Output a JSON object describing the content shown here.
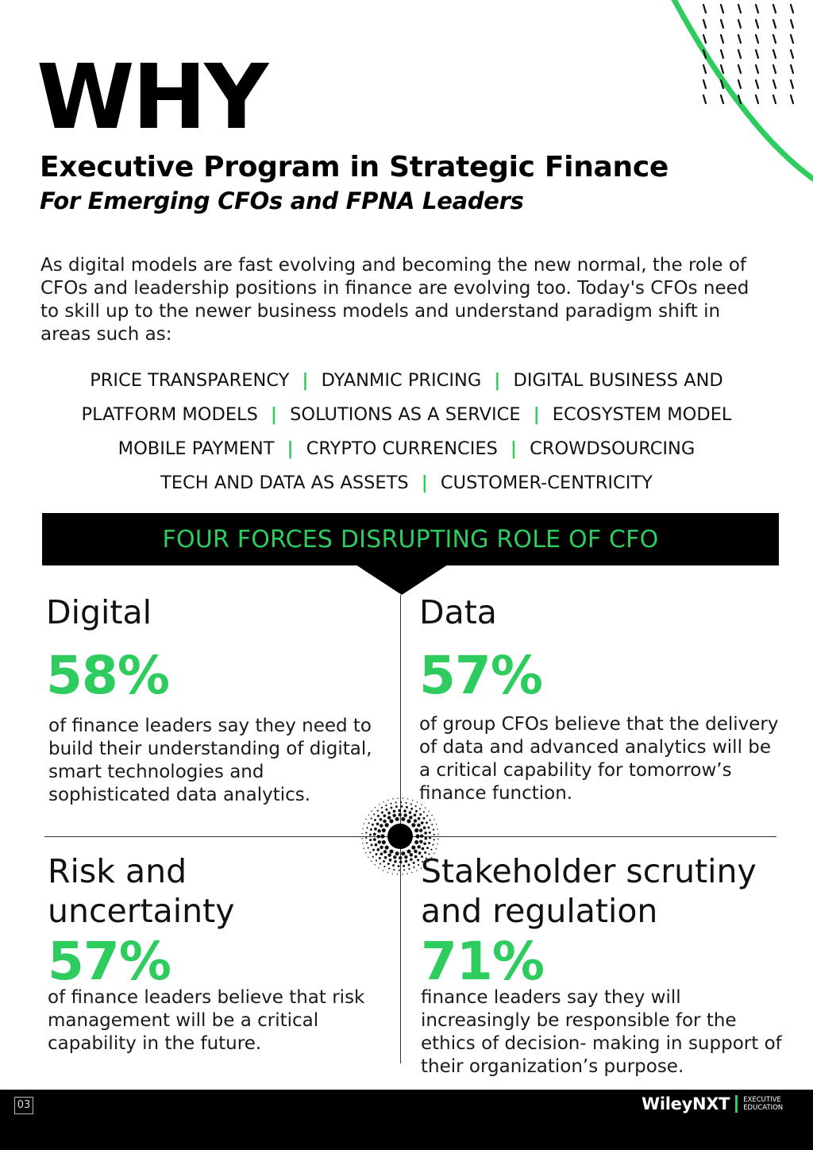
{
  "heading": {
    "why": "WHY",
    "title": "Executive Program in Strategic Finance",
    "subtitle": "For Emerging CFOs and FPNA Leaders"
  },
  "intro": "As digital models are fast evolving and becoming the new normal, the role of CFOs and leadership positions in finance are evolving too. Today's CFOs need to skill up to the newer business models and understand paradigm shift in areas such as:",
  "areas": {
    "a1": "PRICE TRANSPARENCY",
    "a2": "DYANMIC PRICING",
    "a3": "DIGITAL BUSINESS AND",
    "a4": "PLATFORM MODELS",
    "a5": "SOLUTIONS AS A SERVICE",
    "a6": "ECOSYSTEM MODEL",
    "a7": "MOBILE PAYMENT",
    "a8": "CRYPTO CURRENCIES",
    "a9": "CROWDSOURCING",
    "a10": "TECH AND DATA AS ASSETS",
    "a11": "CUSTOMER-CENTRICITY",
    "separator": "|"
  },
  "banner": "FOUR FORCES DISRUPTING ROLE OF CFO",
  "forces": {
    "digital": {
      "title": "Digital",
      "percent": "58%",
      "text": "of finance leaders say they need to build their understanding of digital, smart technologies and sophisticated data analytics."
    },
    "data": {
      "title": "Data",
      "percent": "57%",
      "text": "of group CFOs believe that the delivery of data and advanced analytics will be a critical capability for tomorrow’s finance function."
    },
    "risk": {
      "title": "Risk and uncertainty",
      "percent": "57%",
      "text": "of finance leaders believe that risk management will be a critical capability in the future."
    },
    "stakeholder": {
      "title": "Stakeholder scrutiny and regulation",
      "percent": "71%",
      "text": "finance leaders say they will increasingly be responsible for the ethics of decision- making in support of their organization’s purpose."
    }
  },
  "footer": {
    "page_number": "03",
    "brand": "WileyNXT",
    "tagline_1": "EXECUTIVE",
    "tagline_2": "EDUCATION"
  },
  "colors": {
    "accent": "#2ecc5e",
    "dark": "#000000"
  }
}
